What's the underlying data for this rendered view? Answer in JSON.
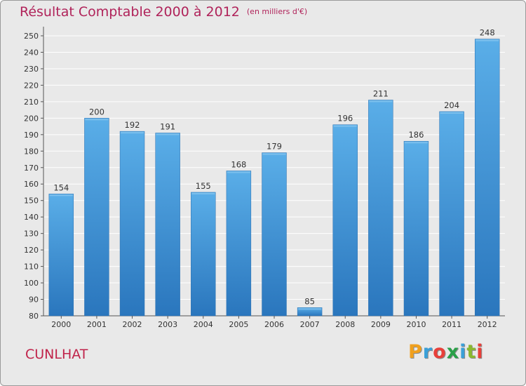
{
  "chart_data": {
    "type": "bar",
    "title": "Résultat Comptable 2000 à 2012",
    "unit_note": "(en milliers d'€)",
    "categories": [
      "2000",
      "2001",
      "2002",
      "2003",
      "2004",
      "2005",
      "2006",
      "2007",
      "2008",
      "2009",
      "2010",
      "2011",
      "2012"
    ],
    "values": [
      154,
      200,
      192,
      191,
      155,
      168,
      179,
      85,
      196,
      211,
      186,
      204,
      248
    ],
    "ylim": [
      80,
      250
    ],
    "yticks": [
      80,
      90,
      100,
      110,
      120,
      130,
      140,
      150,
      160,
      170,
      180,
      190,
      200,
      210,
      220,
      230,
      240,
      250
    ],
    "grid": true,
    "bar_color": "#3a8fd8",
    "bar_color_light": "#5aaee8",
    "bar_color_dark": "#2a76bd"
  },
  "footer": {
    "commune": "CUNLHAT",
    "logo_letters": [
      "P",
      "r",
      "o",
      "x",
      "i",
      "t",
      "i"
    ],
    "logo_colors": [
      "#f0a01e",
      "#3aa0d8",
      "#e8403a",
      "#2aa048",
      "#3aa0d8",
      "#8ab830",
      "#e8403a"
    ]
  }
}
